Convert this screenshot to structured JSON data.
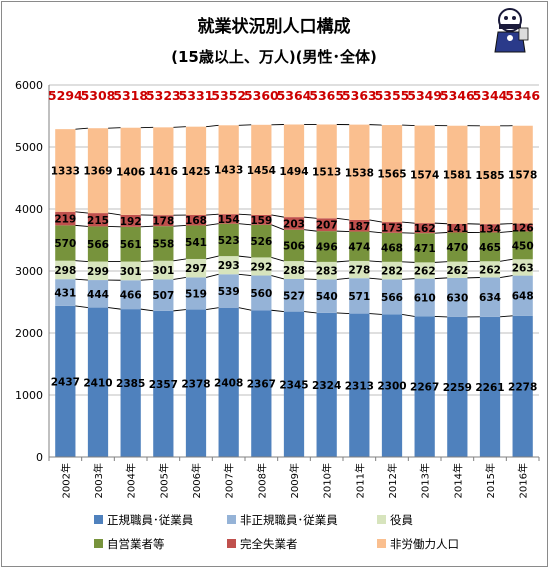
{
  "chart_data": {
    "type": "bar",
    "stacked": true,
    "title": "就業状況別人口構成",
    "subtitle": "(15歳以上、万人)(男性･全体)",
    "categories": [
      "2002年",
      "2003年",
      "2004年",
      "2005年",
      "2006年",
      "2007年",
      "2008年",
      "2009年",
      "2010年",
      "2011年",
      "2012年",
      "2013年",
      "2014年",
      "2015年",
      "2016年"
    ],
    "series": [
      {
        "name": "正規職員･従業員",
        "color": "#4f81bd",
        "values": [
          2437,
          2410,
          2385,
          2357,
          2378,
          2408,
          2367,
          2345,
          2324,
          2313,
          2300,
          2267,
          2259,
          2261,
          2278
        ]
      },
      {
        "name": "非正規職員･従業員",
        "color": "#95b3d7",
        "values": [
          431,
          444,
          466,
          507,
          519,
          539,
          560,
          527,
          540,
          571,
          566,
          610,
          630,
          634,
          648
        ]
      },
      {
        "name": "役員",
        "color": "#d7e4bd",
        "values": [
          298,
          299,
          301,
          301,
          297,
          293,
          292,
          288,
          283,
          278,
          282,
          262,
          262,
          262,
          263
        ]
      },
      {
        "name": "自営業者等",
        "color": "#77933c",
        "values": [
          570,
          566,
          561,
          558,
          541,
          523,
          526,
          506,
          496,
          474,
          468,
          471,
          470,
          465,
          450
        ]
      },
      {
        "name": "完全失業者",
        "color": "#c0504d",
        "values": [
          219,
          215,
          192,
          178,
          168,
          154,
          159,
          203,
          207,
          187,
          173,
          162,
          141,
          134,
          126
        ]
      },
      {
        "name": "非労働力人口",
        "color": "#fabf8f",
        "values": [
          1333,
          1369,
          1406,
          1416,
          1425,
          1433,
          1454,
          1494,
          1513,
          1538,
          1565,
          1574,
          1581,
          1585,
          1578
        ]
      }
    ],
    "totals": [
      5294,
      5308,
      5318,
      5323,
      5331,
      5352,
      5360,
      5364,
      5365,
      5363,
      5355,
      5349,
      5346,
      5344,
      5346
    ],
    "ylim": [
      0,
      6000
    ],
    "yticks": [
      0,
      1000,
      2000,
      3000,
      4000,
      5000,
      6000
    ],
    "grid": true,
    "legend_position": "bottom"
  }
}
